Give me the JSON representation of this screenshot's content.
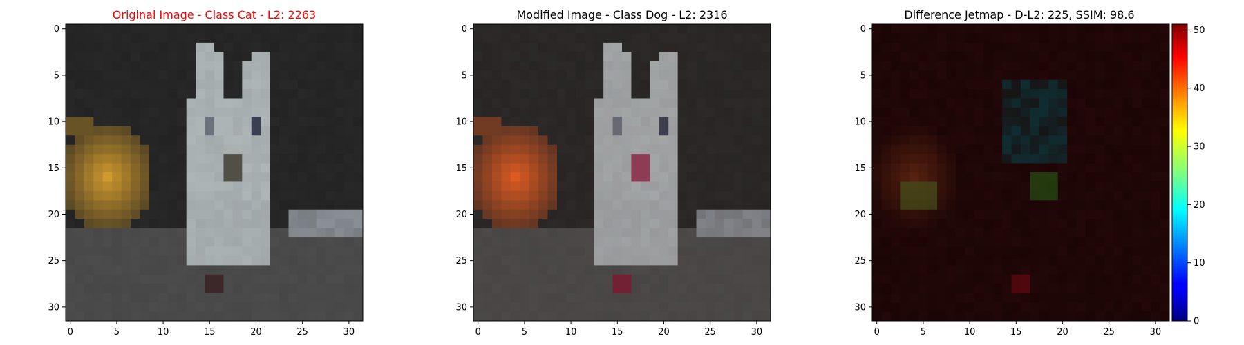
{
  "colors": {
    "title_original": "#ff0000",
    "title_default": "#000000",
    "background": "#ffffff",
    "bg_dark": "#232323",
    "cat_fur": "#b4bcbc",
    "cat_eye": "#3a4052",
    "orange_original": "#d09a2c",
    "orange_modified": "#f0601e",
    "ground": "#4c4c4c",
    "step": "#8a8f95",
    "diff_base": "#1c0505"
  },
  "chart_data": [
    {
      "type": "heatmap",
      "title": "Original Image - Class Cat - L2: 2263",
      "xticks": [
        0,
        5,
        10,
        15,
        20,
        25,
        30
      ],
      "yticks": [
        0,
        5,
        10,
        15,
        20,
        25,
        30
      ],
      "xlim": [
        -0.5,
        31.5
      ],
      "ylim": [
        31.5,
        -0.5
      ],
      "image_size": [
        32,
        32
      ]
    },
    {
      "type": "heatmap",
      "title": "Modified Image - Class Dog - L2: 2316",
      "xticks": [
        0,
        5,
        10,
        15,
        20,
        25,
        30
      ],
      "yticks": [
        0,
        5,
        10,
        15,
        20,
        25,
        30
      ],
      "xlim": [
        -0.5,
        31.5
      ],
      "ylim": [
        31.5,
        -0.5
      ],
      "image_size": [
        32,
        32
      ]
    },
    {
      "type": "heatmap",
      "title": "Difference Jetmap - D-L2: 225, SSIM: 98.6",
      "xticks": [
        0,
        5,
        10,
        15,
        20,
        25,
        30
      ],
      "yticks": [
        0,
        5,
        10,
        15,
        20,
        25,
        30
      ],
      "xlim": [
        -0.5,
        31.5
      ],
      "ylim": [
        31.5,
        -0.5
      ],
      "image_size": [
        32,
        32
      ],
      "colorbar": {
        "min": 0,
        "max": 51,
        "ticks": [
          0,
          10,
          20,
          30,
          40,
          50
        ],
        "colormap": "jet"
      }
    }
  ]
}
